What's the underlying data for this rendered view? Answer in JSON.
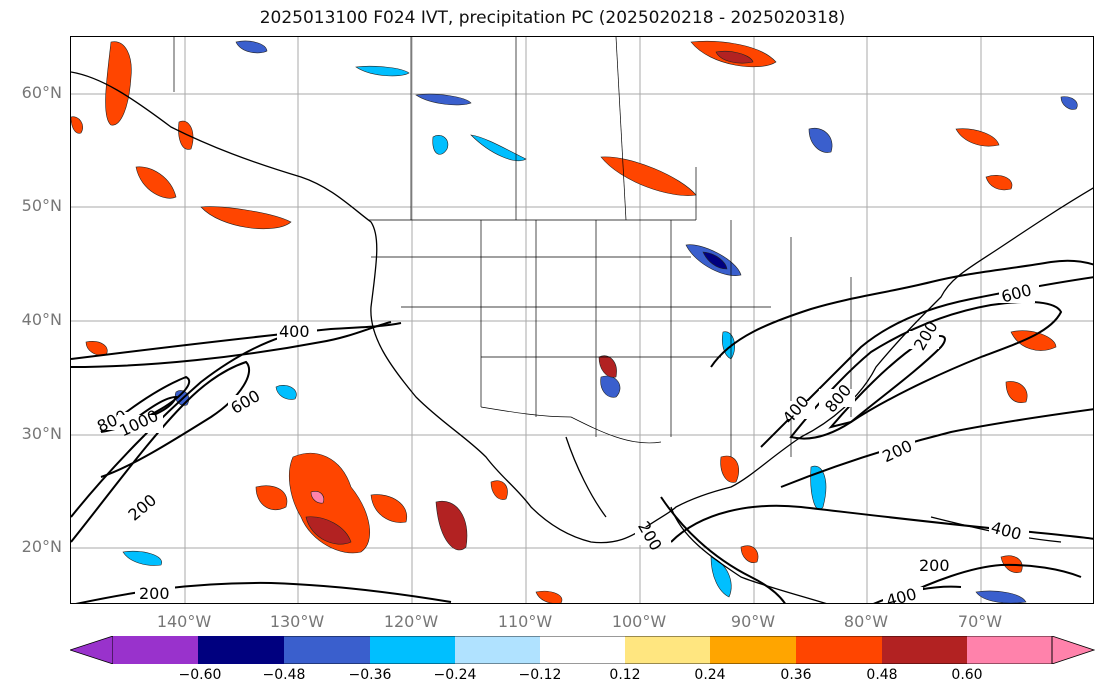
{
  "title": "2025013100 F024 IVT, precipitation PC (2025020218 - 2025020318)",
  "lat_labels": [
    "60°N",
    "50°N",
    "40°N",
    "30°N",
    "20°N"
  ],
  "lon_labels": [
    "140°W",
    "130°W",
    "120°W",
    "110°W",
    "100°W",
    "90°W",
    "80°W",
    "70°W"
  ],
  "contour_labels": [
    "400",
    "600",
    "800",
    "1000",
    "200",
    "200",
    "400",
    "200",
    "600",
    "400",
    "800",
    "200",
    "200",
    "200",
    "400",
    "400"
  ],
  "colorbar": {
    "ticks": [
      "−0.60",
      "−0.48",
      "−0.36",
      "−0.24",
      "−0.12",
      "0.12",
      "0.24",
      "0.36",
      "0.48",
      "0.60"
    ],
    "colors": [
      "#9932cc",
      "#00007f",
      "#3a5fcd",
      "#00bfff",
      "#b0e2ff",
      "#ffffff",
      "#ffe680",
      "#ffa500",
      "#ff4500",
      "#b22222",
      "#ff82ab"
    ]
  }
}
